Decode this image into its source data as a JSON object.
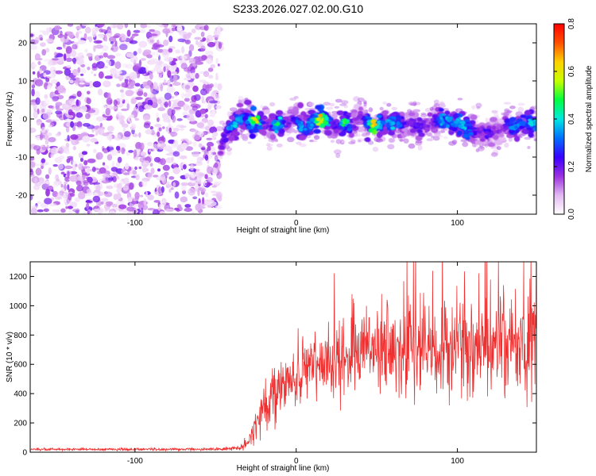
{
  "title": "S233.2026.027.02.00.G10",
  "chart_data": [
    {
      "type": "heatmap",
      "name": "spectrogram",
      "xlabel": "Height of straight line (km)",
      "ylabel": "Frequency (Hz)",
      "xlim": [
        -165,
        149
      ],
      "ylim": [
        -25,
        25
      ],
      "xticks": [
        -100,
        0,
        100
      ],
      "yticks": [
        -20,
        -10,
        0,
        10,
        20
      ],
      "colorbar": {
        "label": "Normalized spectral amplitude",
        "range": [
          0.0,
          0.8
        ],
        "ticks": [
          "0.0",
          "0.2",
          "0.4",
          "0.6",
          "0.8"
        ],
        "colors": [
          "#ffffff",
          "#e3b8f2",
          "#9b30e0",
          "#3800ff",
          "#0070ff",
          "#00e8e0",
          "#00ff40",
          "#c8ff00",
          "#ffd000",
          "#ff5000",
          "#ff0000"
        ]
      },
      "noise_region_x": [
        -165,
        -47
      ],
      "signal_onset_x": -47,
      "signal_frequency_trend": [
        [
          -47,
          -9
        ],
        [
          -45,
          -5
        ],
        [
          -40,
          -2
        ],
        [
          -35,
          0
        ],
        [
          -30,
          0
        ],
        [
          -25,
          -1
        ],
        [
          -20,
          -1
        ],
        [
          -15,
          -2
        ],
        [
          -10,
          -1
        ],
        [
          -5,
          -1
        ],
        [
          0,
          0.5
        ],
        [
          5,
          -3
        ],
        [
          10,
          -1
        ],
        [
          15,
          0
        ],
        [
          20,
          -1
        ],
        [
          25,
          -2
        ],
        [
          30,
          -1
        ],
        [
          35,
          -2
        ],
        [
          40,
          0.5
        ],
        [
          45,
          -1
        ],
        [
          50,
          -2
        ],
        [
          55,
          -1
        ],
        [
          60,
          -1
        ],
        [
          65,
          -1
        ],
        [
          70,
          -1
        ],
        [
          75,
          -2
        ],
        [
          80,
          -2
        ],
        [
          85,
          -1
        ],
        [
          90,
          0
        ],
        [
          95,
          -1
        ],
        [
          100,
          -1
        ],
        [
          105,
          -2
        ],
        [
          110,
          -3
        ],
        [
          115,
          -3
        ],
        [
          120,
          -4
        ],
        [
          125,
          -3
        ],
        [
          130,
          -2
        ],
        [
          135,
          -2
        ],
        [
          140,
          -1
        ],
        [
          149,
          -1
        ]
      ],
      "peak_amplitude_near_x": [
        -25,
        -12,
        15,
        30,
        48
      ]
    },
    {
      "type": "line",
      "name": "snr",
      "xlabel": "Height of straight line (km)",
      "ylabel": "SNR (10 * v/v)",
      "xlim": [
        -165,
        149
      ],
      "ylim": [
        0,
        1300
      ],
      "xticks": [
        -100,
        0,
        100
      ],
      "yticks": [
        0,
        200,
        400,
        600,
        800,
        1000,
        1200
      ],
      "color": "#ef3030",
      "series": [
        {
          "name": "SNR",
          "envelope_x": [
            -165,
            -140,
            -100,
            -60,
            -45,
            -35,
            -30,
            -25,
            -20,
            -15,
            -10,
            -5,
            0,
            10,
            20,
            30,
            40,
            60,
            80,
            100,
            120,
            140,
            149
          ],
          "envelope_mean": [
            20,
            20,
            20,
            20,
            22,
            30,
            60,
            200,
            330,
            380,
            420,
            480,
            520,
            580,
            620,
            660,
            680,
            700,
            700,
            700,
            700,
            720,
            720
          ],
          "envelope_spread": [
            8,
            8,
            8,
            8,
            10,
            15,
            40,
            120,
            150,
            160,
            170,
            180,
            190,
            200,
            220,
            240,
            250,
            260,
            280,
            300,
            300,
            320,
            320
          ]
        }
      ]
    }
  ]
}
